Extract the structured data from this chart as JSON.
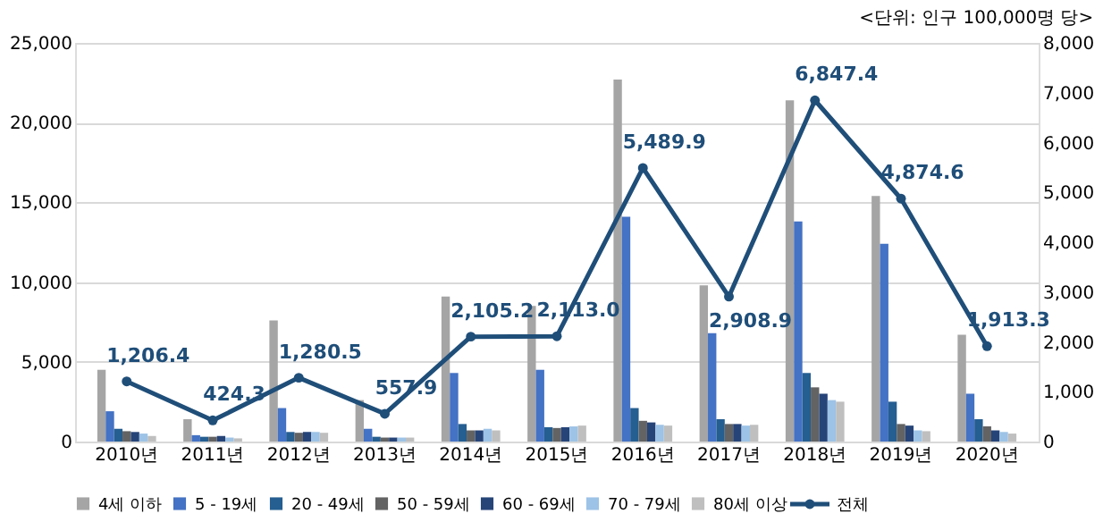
{
  "chart_data": {
    "type": "bar",
    "annotations": [
      "<단위: 인구 100,000명 당>"
    ],
    "categories": [
      "2010년",
      "2011년",
      "2012년",
      "2013년",
      "2014년",
      "2015년",
      "2016년",
      "2017년",
      "2018년",
      "2019년",
      "2020년"
    ],
    "series": [
      {
        "name": "4세 이하",
        "color": "#a5a5a5",
        "values": [
          4500,
          1400,
          7600,
          2600,
          9100,
          8500,
          22700,
          9800,
          21400,
          15400,
          6700
        ]
      },
      {
        "name": "5 - 19세",
        "color": "#4472c4",
        "values": [
          1900,
          400,
          2100,
          800,
          4300,
          4500,
          14100,
          6800,
          13800,
          12400,
          3000
        ]
      },
      {
        "name": "20 - 49세",
        "color": "#255e91",
        "values": [
          800,
          300,
          600,
          300,
          1100,
          900,
          2100,
          1400,
          4300,
          2500,
          1400
        ]
      },
      {
        "name": "50 - 59세",
        "color": "#636363",
        "values": [
          650,
          300,
          550,
          250,
          700,
          850,
          1300,
          1100,
          3400,
          1100,
          950
        ]
      },
      {
        "name": "60 - 69세",
        "color": "#264478",
        "values": [
          600,
          350,
          600,
          250,
          700,
          900,
          1200,
          1100,
          3000,
          1000,
          700
        ]
      },
      {
        "name": "70 - 79세",
        "color": "#9dc3e6",
        "values": [
          500,
          250,
          600,
          250,
          800,
          950,
          1050,
          1000,
          2600,
          700,
          600
        ]
      },
      {
        "name": "80세 이상",
        "color": "#bfbfbf",
        "values": [
          350,
          200,
          550,
          250,
          700,
          1000,
          1000,
          1050,
          2500,
          650,
          500
        ]
      },
      {
        "name": "전체",
        "color": "#1f4e79",
        "type": "line",
        "axis": "y2",
        "values": [
          1206.4,
          424.3,
          1280.5,
          557.9,
          2105.2,
          2113.0,
          5489.9,
          2908.9,
          6847.4,
          4874.6,
          1913.3
        ],
        "value_labels": [
          "1,206.4",
          "424.3",
          "1,280.5",
          "557.9",
          "2,105.2",
          "2,113.0",
          "5,489.9",
          "2,908.9",
          "6,847.4",
          "4,874.6",
          "1,913.3"
        ]
      }
    ],
    "ylim": [
      0,
      25000
    ],
    "yticks": [
      0,
      {
        "value": 5000,
        "label": "5,000"
      },
      {
        "value": 10000,
        "label": "10,000"
      },
      {
        "value": 15000,
        "label": "15,000"
      },
      {
        "value": 20000,
        "label": "20,000"
      },
      {
        "value": 25000,
        "label": "25,000"
      }
    ],
    "y2lim": [
      0,
      8000
    ],
    "y2ticks": [
      0,
      {
        "value": 1000,
        "label": "1,000"
      },
      {
        "value": 2000,
        "label": "2,000"
      },
      {
        "value": 3000,
        "label": "3,000"
      },
      {
        "value": 4000,
        "label": "4,000"
      },
      {
        "value": 5000,
        "label": "5,000"
      },
      {
        "value": 6000,
        "label": "6,000"
      },
      {
        "value": 7000,
        "label": "7,000"
      },
      {
        "value": 8000,
        "label": "8,000"
      }
    ],
    "grid": "y",
    "legend": "bottom",
    "marker": "circle"
  }
}
